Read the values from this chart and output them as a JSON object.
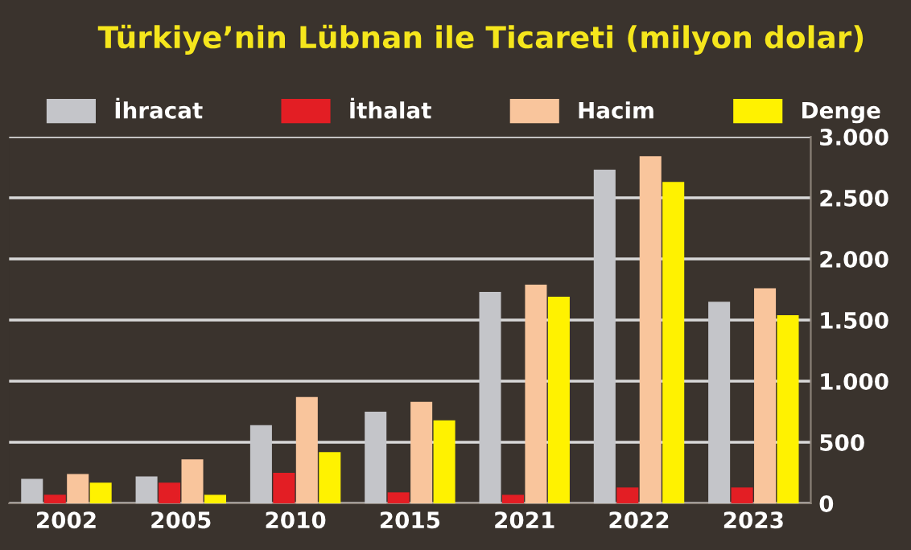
{
  "chart_data": {
    "type": "bar",
    "title": "Türkiye’nin Lübnan ile Ticareti (milyon dolar)",
    "categories": [
      "2002",
      "2005",
      "2010",
      "2015",
      "2021",
      "2022",
      "2023"
    ],
    "series": [
      {
        "name": "İhracat",
        "color": "#c4c5c9",
        "values": [
          200,
          220,
          640,
          750,
          1730,
          2730,
          1650
        ]
      },
      {
        "name": "İthalat",
        "color": "#e31e24",
        "values": [
          70,
          170,
          250,
          90,
          70,
          130,
          130
        ]
      },
      {
        "name": "Hacim",
        "color": "#f9c59c",
        "values": [
          240,
          360,
          870,
          830,
          1790,
          2840,
          1760
        ]
      },
      {
        "name": "Denge",
        "color": "#fff200",
        "values": [
          170,
          70,
          420,
          680,
          1690,
          2630,
          1540
        ]
      }
    ],
    "ylim": [
      0,
      3000
    ],
    "yticks": [
      {
        "value": 0,
        "label": "0"
      },
      {
        "value": 500,
        "label": "500"
      },
      {
        "value": 1000,
        "label": "1.000"
      },
      {
        "value": 1500,
        "label": "1.500"
      },
      {
        "value": 2000,
        "label": "2.000"
      },
      {
        "value": 2500,
        "label": "2.500"
      },
      {
        "value": 3000,
        "label": "3.000"
      }
    ],
    "grid": "y",
    "legend": "top"
  }
}
